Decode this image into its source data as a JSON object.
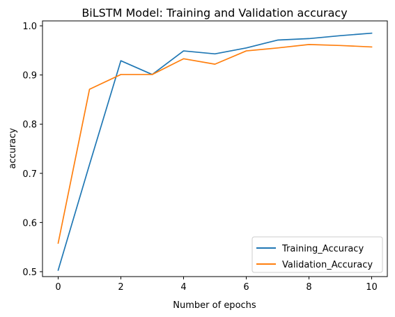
{
  "chart_data": {
    "type": "line",
    "title": "BiLSTM Model: Training and Validation accuracy",
    "xlabel": "Number of epochs",
    "ylabel": "accuracy",
    "xlim": [
      -0.5,
      10.5
    ],
    "ylim": [
      0.49,
      1.01
    ],
    "xticks": [
      0,
      2,
      4,
      6,
      8,
      10
    ],
    "yticks": [
      0.5,
      0.6,
      0.7,
      0.8,
      0.9,
      1.0
    ],
    "ytick_labels": [
      "0.5",
      "0.6",
      "0.7",
      "0.8",
      "0.9",
      "1.0"
    ],
    "x": [
      0,
      1,
      2,
      3,
      4,
      5,
      6,
      7,
      8,
      9,
      10
    ],
    "series": [
      {
        "name": "Training_Accuracy",
        "color": "#1f77b4",
        "values": [
          0.503,
          0.718,
          0.929,
          0.901,
          0.949,
          0.943,
          0.955,
          0.971,
          0.974,
          0.98,
          0.985
        ]
      },
      {
        "name": "Validation_Accuracy",
        "color": "#ff7f0e",
        "values": [
          0.558,
          0.871,
          0.901,
          0.901,
          0.933,
          0.922,
          0.949,
          0.955,
          0.962,
          0.96,
          0.957
        ]
      }
    ],
    "grid": false,
    "legend": "lower-right"
  }
}
